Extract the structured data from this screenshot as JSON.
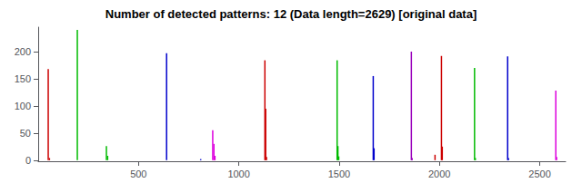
{
  "chart_data": {
    "type": "bar",
    "title": "Number of detected patterns: 12 (Data length=2629) [original data]",
    "x": [
      50,
      56,
      195,
      340,
      346,
      640,
      810,
      870,
      876,
      881,
      1130,
      1134,
      1138,
      1490,
      1494,
      1498,
      1670,
      1674,
      1860,
      1864,
      1978,
      2010,
      2014,
      2175,
      2179,
      2340,
      2344,
      2580,
      2584
    ],
    "values": [
      168,
      4,
      240,
      26,
      8,
      197,
      2,
      55,
      30,
      8,
      184,
      95,
      6,
      184,
      26,
      7,
      155,
      22,
      200,
      4,
      10,
      192,
      25,
      170,
      4,
      191,
      4,
      128,
      6
    ],
    "colors": [
      "#cc0000",
      "#cc0000",
      "#00bb00",
      "#00bb00",
      "#00bb00",
      "#0000cc",
      "#0000cc",
      "#dd00dd",
      "#dd00dd",
      "#dd00dd",
      "#cc0000",
      "#cc0000",
      "#cc0000",
      "#00bb00",
      "#00bb00",
      "#00bb00",
      "#0000cc",
      "#0000cc",
      "#9900bb",
      "#9900bb",
      "#cc0000",
      "#cc0000",
      "#cc0000",
      "#00bb00",
      "#00bb00",
      "#0000cc",
      "#0000cc",
      "#dd00dd",
      "#dd00dd"
    ],
    "xlim": [
      0,
      2629
    ],
    "ylim": [
      -2,
      245
    ],
    "xticks": [
      500,
      1000,
      1500,
      2000,
      2500
    ],
    "yticks": [
      0,
      50,
      100,
      150,
      200
    ],
    "grid": false
  }
}
